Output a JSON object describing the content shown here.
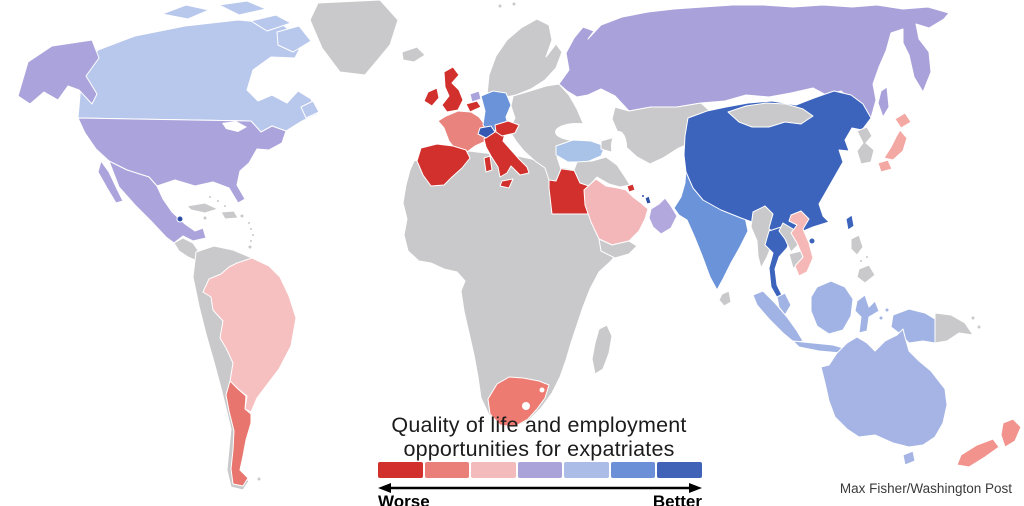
{
  "title": {
    "line1": "Quality of life and employment",
    "line2": "opportunities for expatriates"
  },
  "credit": "Max Fisher/Washington Post",
  "legend": {
    "worse_label": "Worse",
    "better_label": "Better",
    "colors": [
      "#d2302c",
      "#e97f78",
      "#f4bbbc",
      "#aaa3da",
      "#abbce6",
      "#6b90d7",
      "#4062b7"
    ],
    "arrow_color": "#000000"
  },
  "map": {
    "ocean_color": "#ffffff",
    "border_color": "#ffffff",
    "no_data_color": "#c9c9cb",
    "countries": {
      "nodata": {
        "name": "No data",
        "fill": "#c9c9cb"
      },
      "water": {
        "name": "Water",
        "fill": "#ffffff"
      },
      "canada": {
        "name": "Canada",
        "fill": "#b8c7ec",
        "legend_level": 5
      },
      "usa": {
        "name": "United States",
        "fill": "#aba4dc",
        "legend_level": 4
      },
      "mexico": {
        "name": "Mexico",
        "fill": "#aba4dc",
        "legend_level": 4
      },
      "cayman_islands": {
        "name": "Cayman Islands",
        "fill": "#2b4fa5",
        "legend_level": 7
      },
      "brazil": {
        "name": "Brazil",
        "fill": "#f6bfc0",
        "legend_level": 3
      },
      "argentina": {
        "name": "Argentina",
        "fill": "#e8756e",
        "legend_level": 2
      },
      "united_kingdom": {
        "name": "United Kingdom",
        "fill": "#d2302c",
        "legend_level": 1
      },
      "ireland": {
        "name": "Ireland",
        "fill": "#d2302c",
        "legend_level": 1
      },
      "france": {
        "name": "France",
        "fill": "#e8837d",
        "legend_level": 2
      },
      "spain": {
        "name": "Spain",
        "fill": "#d2302c",
        "legend_level": 1
      },
      "italy": {
        "name": "Italy",
        "fill": "#d2302c",
        "legend_level": 1
      },
      "belgium": {
        "name": "Belgium",
        "fill": "#d2302c",
        "legend_level": 1
      },
      "austria": {
        "name": "Austria",
        "fill": "#d2302c",
        "legend_level": 1
      },
      "netherlands": {
        "name": "Netherlands",
        "fill": "#aba4dc",
        "legend_level": 4
      },
      "germany": {
        "name": "Germany",
        "fill": "#6b93d9",
        "legend_level": 6
      },
      "switzerland": {
        "name": "Switzerland",
        "fill": "#3558b2",
        "legend_level": 7
      },
      "russia": {
        "name": "Russia",
        "fill": "#a9a1da",
        "legend_level": 4
      },
      "turkey": {
        "name": "Turkey",
        "fill": "#a9c2e8",
        "legend_level": 5
      },
      "egypt": {
        "name": "Egypt",
        "fill": "#d2302c",
        "legend_level": 1
      },
      "saudi_arabia": {
        "name": "Saudi Arabia",
        "fill": "#f3b7b9",
        "legend_level": 3
      },
      "kuwait": {
        "name": "Kuwait",
        "fill": "#d2302c",
        "legend_level": 1
      },
      "qatar": {
        "name": "Qatar",
        "fill": "#2b4fa5",
        "legend_level": 7
      },
      "bahrain": {
        "name": "Bahrain",
        "fill": "#2b4fa5",
        "legend_level": 7
      },
      "oman": {
        "name": "Oman / U.A.E.",
        "fill": "#b2a8de",
        "legend_level": 4
      },
      "south_africa": {
        "name": "South Africa",
        "fill": "#ee7b72",
        "legend_level": 2
      },
      "india": {
        "name": "India",
        "fill": "#6b93d9",
        "legend_level": 6
      },
      "bangladesh": {
        "name": "Bangladesh",
        "fill": "#5f87d6",
        "legend_level": 6
      },
      "china": {
        "name": "China",
        "fill": "#3c64bd",
        "legend_level": 7
      },
      "taiwan": {
        "name": "Taiwan",
        "fill": "#3c64bd",
        "legend_level": 7
      },
      "thailand": {
        "name": "Thailand",
        "fill": "#3c64bd",
        "legend_level": 7
      },
      "vietnam": {
        "name": "Vietnam",
        "fill": "#f6b8b6",
        "legend_level": 3
      },
      "japan": {
        "name": "Japan",
        "fill": "#f4a8a4",
        "legend_level": 3
      },
      "malaysia": {
        "name": "Malaysia",
        "fill": "#a0b3e4",
        "legend_level": 5
      },
      "indonesia": {
        "name": "Indonesia",
        "fill": "#a0b3e4",
        "legend_level": 5
      },
      "australia": {
        "name": "Australia",
        "fill": "#a5b4e4",
        "legend_level": 5
      },
      "new_zealand": {
        "name": "New Zealand",
        "fill": "#f2938d",
        "legend_level": 2
      }
    }
  },
  "chart_data": {
    "type": "heatmap",
    "subtype": "choropleth-world-map",
    "title": "Quality of life and employment opportunities for expatriates",
    "legend": {
      "left_label": "Worse",
      "right_label": "Better",
      "steps": 7,
      "colors": [
        "#d2302c",
        "#e97f78",
        "#f4bbbc",
        "#aaa3da",
        "#abbce6",
        "#6b90d7",
        "#4062b7"
      ]
    },
    "values_by_country_level_1_worst_to_7_best": {
      "United Kingdom": 1,
      "Ireland": 1,
      "Spain": 1,
      "Italy": 1,
      "Belgium": 1,
      "Austria": 1,
      "Egypt": 1,
      "Kuwait": 1,
      "France": 2,
      "Argentina": 2,
      "South Africa": 2,
      "New Zealand": 2,
      "Brazil": 3,
      "Saudi Arabia": 3,
      "Vietnam": 3,
      "Japan": 3,
      "United States": 4,
      "Mexico": 4,
      "Russia": 4,
      "Netherlands": 4,
      "Oman / U.A.E.": 4,
      "Canada": 5,
      "Turkey": 5,
      "Australia": 5,
      "Malaysia": 5,
      "Indonesia": 5,
      "Germany": 6,
      "India": 6,
      "Bangladesh": 6,
      "China": 7,
      "Switzerland": 7,
      "Thailand": 7,
      "Qatar": 7,
      "Bahrain": 7,
      "Cayman Islands": 7,
      "Taiwan": 7
    }
  }
}
